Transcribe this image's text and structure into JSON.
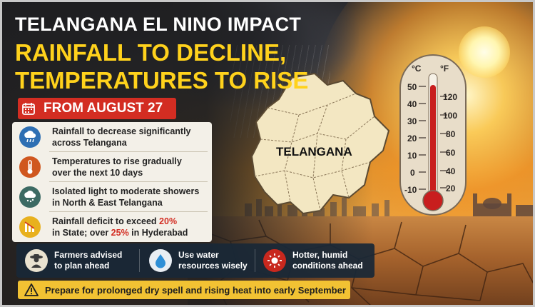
{
  "header": {
    "line1": "TELANGANA EL NINO IMPACT",
    "line2": "RAINFALL TO DECLINE,",
    "line3": "TEMPERATURES TO RISE"
  },
  "date_banner": {
    "icon": "calendar-icon",
    "label": "FROM AUGUST 27"
  },
  "points": [
    {
      "icon": "rain-cloud-icon",
      "icon_bg": "#2e6fb3",
      "line1": "Rainfall to decrease significantly",
      "line2": "across Telangana"
    },
    {
      "icon": "thermometer-icon",
      "icon_bg": "#d0571f",
      "line1": "Temperatures to rise gradually",
      "line2": "over the next 10 days"
    },
    {
      "icon": "storm-cloud-icon",
      "icon_bg": "#3c6a63",
      "line1": "Isolated light to moderate showers",
      "line2": "in North & East Telangana"
    },
    {
      "icon": "declining-bars-icon",
      "icon_bg": "#e8b11e",
      "line1_pre": "Rainfall deficit to exceed ",
      "line1_hl": "20%",
      "line2_pre": "in State; over ",
      "line2_hl": "25%",
      "line2_post": " in Hyderabad"
    }
  ],
  "tips": [
    {
      "icon": "farmer-icon",
      "line1": "Farmers advised",
      "line2": "to plan ahead"
    },
    {
      "icon": "water-drop-icon",
      "line1": "Use water",
      "line2": "resources wisely"
    },
    {
      "icon": "sun-icon",
      "line1": "Hotter, humid",
      "line2": "conditions ahead"
    }
  ],
  "warning": {
    "icon": "warning-icon",
    "text": "Prepare for prolonged dry spell and rising heat into early September"
  },
  "map": {
    "label": "TELANGANA"
  },
  "thermometer": {
    "celsius_unit": "°C",
    "fahrenheit_unit": "°F",
    "celsius_ticks": [
      "50",
      "40",
      "30",
      "20",
      "10",
      "0",
      "-10"
    ],
    "fahrenheit_ticks": [
      "120",
      "100",
      "80",
      "60",
      "40",
      "20"
    ]
  },
  "colors": {
    "accent_yellow": "#ffd21c",
    "banner_red": "#d32d22",
    "highlight_red": "#d32d22",
    "warning_yellow": "#f2c233"
  }
}
